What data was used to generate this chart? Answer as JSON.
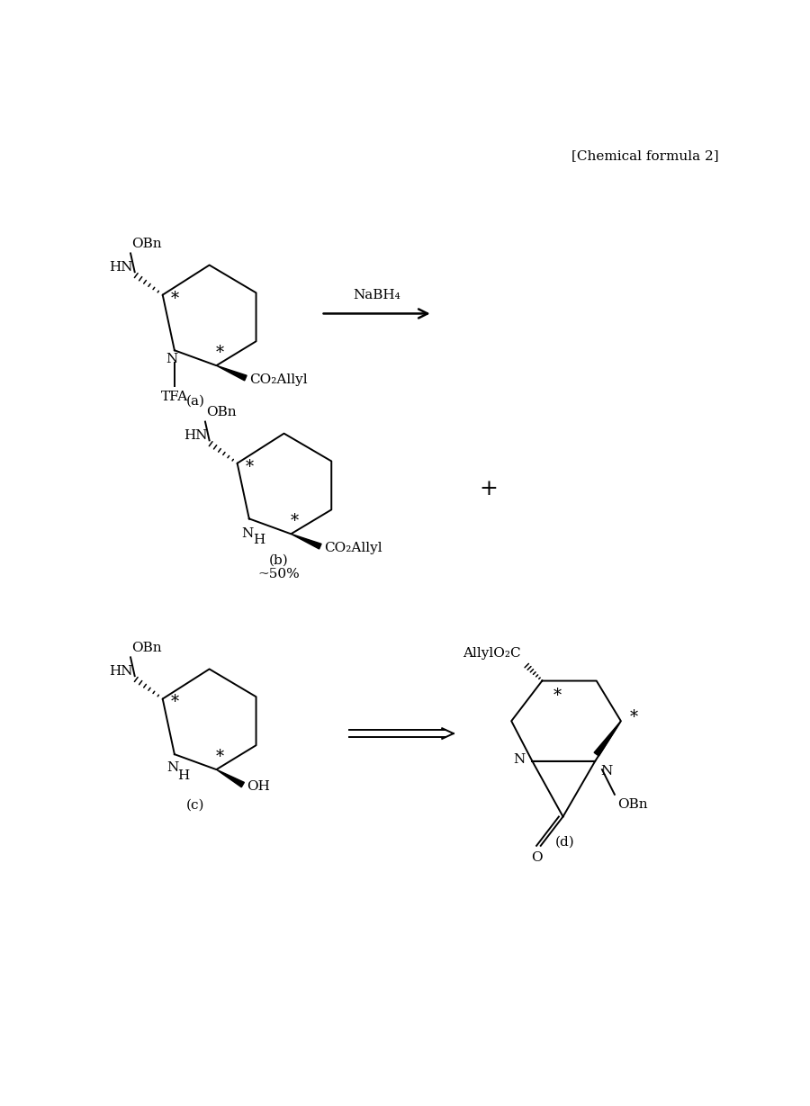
{
  "title": "[Chemical formula 2]",
  "bg_color": "#ffffff",
  "fig_width": 9.0,
  "fig_height": 12.29,
  "label_a": "(a)",
  "label_b": "(b)",
  "label_b2": "~50%",
  "label_c": "(c)",
  "label_d": "(d)",
  "fontsize": 11,
  "lw": 1.4
}
